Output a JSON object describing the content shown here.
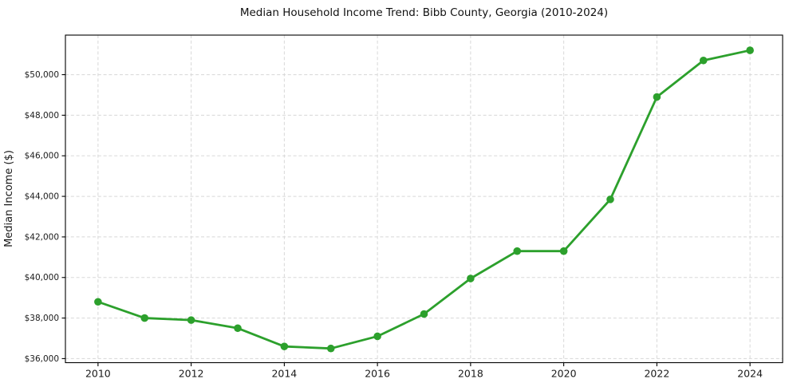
{
  "chart_data": {
    "type": "line",
    "title": "Median Household Income Trend: Bibb County, Georgia (2010-2024)",
    "xlabel": "",
    "ylabel": "Median Income ($)",
    "x": [
      2010,
      2011,
      2012,
      2013,
      2014,
      2015,
      2016,
      2017,
      2018,
      2019,
      2020,
      2021,
      2022,
      2023,
      2024
    ],
    "series": [
      {
        "name": "Median Household Income",
        "values": [
          38800,
          38000,
          37900,
          37500,
          36600,
          36500,
          37100,
          38200,
          39950,
          41300,
          41300,
          43850,
          48900,
          50700,
          51200
        ],
        "color": "#2ca02c"
      }
    ],
    "xticks": {
      "values": [
        2010,
        2012,
        2014,
        2016,
        2018,
        2020,
        2022,
        2024
      ],
      "labels": [
        "2010",
        "2012",
        "2014",
        "2016",
        "2018",
        "2020",
        "2022",
        "2024"
      ]
    },
    "yticks": {
      "values": [
        36000,
        38000,
        40000,
        42000,
        44000,
        46000,
        48000,
        50000
      ],
      "labels": [
        "$36,000",
        "$38,000",
        "$40,000",
        "$42,000",
        "$44,000",
        "$46,000",
        "$48,000",
        "$50,000"
      ]
    },
    "xlim": [
      2009.3,
      2024.7
    ],
    "ylim": [
      35800,
      51950
    ],
    "grid": true,
    "legend": false,
    "marker": "circle",
    "colors": {
      "line": "#2ca02c",
      "grid": "#d8d8d8",
      "axis": "#000000",
      "text": "#1a1a1a",
      "background": "#ffffff"
    }
  }
}
